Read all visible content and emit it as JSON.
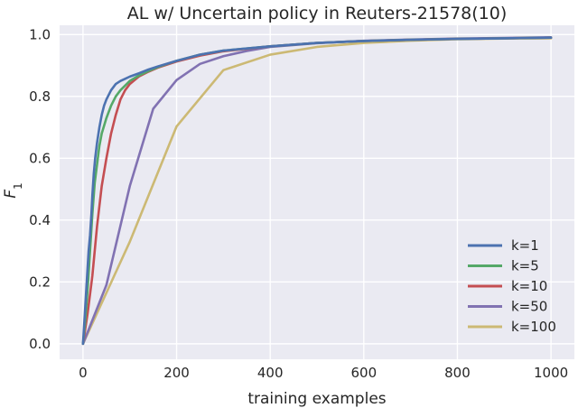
{
  "chart_data": {
    "type": "line",
    "title": "AL w/ Uncertain policy in Reuters-21578(10)",
    "xlabel": "training examples",
    "ylabel_main": "F",
    "ylabel_sub": "1",
    "xlim": [
      -50,
      1050
    ],
    "ylim": [
      -0.05,
      1.03
    ],
    "xticks": [
      0,
      200,
      400,
      600,
      800,
      1000
    ],
    "yticks": [
      0.0,
      0.2,
      0.4,
      0.6,
      0.8,
      1.0
    ],
    "xtick_labels": [
      "0",
      "200",
      "400",
      "600",
      "800",
      "1000"
    ],
    "ytick_labels": [
      "0.0",
      "0.2",
      "0.4",
      "0.6",
      "0.8",
      "1.0"
    ],
    "grid": true,
    "plot_background": "#eaeaf2",
    "legend_position": "bottom-right",
    "series": [
      {
        "name": "k=1",
        "color": "#4c72b0",
        "x": [
          0,
          2,
          4,
          6,
          8,
          10,
          12,
          15,
          18,
          20,
          23,
          26,
          30,
          35,
          40,
          45,
          50,
          60,
          70,
          80,
          90,
          100,
          120,
          140,
          160,
          180,
          200,
          250,
          300,
          400,
          500,
          600,
          700,
          800,
          900,
          1000
        ],
        "y": [
          0.0,
          0.05,
          0.1,
          0.15,
          0.2,
          0.25,
          0.3,
          0.35,
          0.42,
          0.48,
          0.55,
          0.6,
          0.65,
          0.7,
          0.74,
          0.77,
          0.79,
          0.82,
          0.84,
          0.85,
          0.857,
          0.864,
          0.875,
          0.887,
          0.897,
          0.906,
          0.915,
          0.935,
          0.948,
          0.962,
          0.973,
          0.979,
          0.983,
          0.986,
          0.988,
          0.99
        ]
      },
      {
        "name": "k=5",
        "color": "#55a868",
        "x": [
          0,
          5,
          10,
          15,
          20,
          25,
          30,
          35,
          40,
          50,
          60,
          70,
          80,
          90,
          100,
          120,
          140,
          160,
          180,
          200,
          250,
          300,
          400,
          500,
          600,
          700,
          800,
          900,
          1000
        ],
        "y": [
          0.0,
          0.08,
          0.18,
          0.3,
          0.42,
          0.52,
          0.58,
          0.64,
          0.68,
          0.73,
          0.77,
          0.8,
          0.82,
          0.835,
          0.85,
          0.868,
          0.882,
          0.895,
          0.905,
          0.915,
          0.935,
          0.948,
          0.962,
          0.973,
          0.979,
          0.983,
          0.986,
          0.988,
          0.99
        ]
      },
      {
        "name": "k=10",
        "color": "#c44e52",
        "x": [
          0,
          10,
          20,
          30,
          40,
          50,
          60,
          70,
          80,
          90,
          100,
          120,
          140,
          160,
          180,
          200,
          250,
          300,
          400,
          500,
          600,
          700,
          800,
          900,
          1000
        ],
        "y": [
          0.0,
          0.1,
          0.22,
          0.38,
          0.51,
          0.6,
          0.68,
          0.74,
          0.79,
          0.82,
          0.84,
          0.865,
          0.88,
          0.893,
          0.903,
          0.913,
          0.932,
          0.946,
          0.962,
          0.973,
          0.979,
          0.983,
          0.986,
          0.988,
          0.99
        ]
      },
      {
        "name": "k=50",
        "color": "#8172b2",
        "x": [
          0,
          50,
          100,
          150,
          200,
          250,
          300,
          350,
          400,
          500,
          600,
          700,
          800,
          900,
          1000
        ],
        "y": [
          0.0,
          0.19,
          0.51,
          0.76,
          0.853,
          0.905,
          0.93,
          0.947,
          0.96,
          0.972,
          0.98,
          0.984,
          0.987,
          0.989,
          0.991
        ]
      },
      {
        "name": "k=100",
        "color": "#ccb974",
        "x": [
          0,
          100,
          200,
          300,
          400,
          500,
          600,
          700,
          800,
          900,
          1000
        ],
        "y": [
          0.0,
          0.33,
          0.703,
          0.885,
          0.935,
          0.96,
          0.973,
          0.98,
          0.985,
          0.987,
          0.988
        ]
      }
    ]
  }
}
